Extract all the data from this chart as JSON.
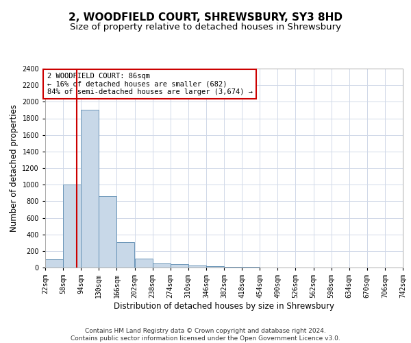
{
  "title": "2, WOODFIELD COURT, SHREWSBURY, SY3 8HD",
  "subtitle": "Size of property relative to detached houses in Shrewsbury",
  "xlabel": "Distribution of detached houses by size in Shrewsbury",
  "ylabel": "Number of detached properties",
  "footer_line1": "Contains HM Land Registry data © Crown copyright and database right 2024.",
  "footer_line2": "Contains public sector information licensed under the Open Government Licence v3.0.",
  "annotation_line1": "2 WOODFIELD COURT: 86sqm",
  "annotation_line2": "← 16% of detached houses are smaller (682)",
  "annotation_line3": "84% of semi-detached houses are larger (3,674) →",
  "bar_color": "#c8d8e8",
  "bar_edge_color": "#5a8ab0",
  "vline_color": "#cc0000",
  "vline_x": 86,
  "bin_edges": [
    22,
    58,
    94,
    130,
    166,
    202,
    238,
    274,
    310,
    346,
    382,
    418,
    454,
    490,
    526,
    562,
    598,
    634,
    670,
    706,
    742
  ],
  "bar_heights": [
    100,
    1000,
    1900,
    860,
    310,
    110,
    50,
    40,
    25,
    15,
    8,
    5,
    3,
    2,
    1,
    1,
    1,
    1,
    0,
    0
  ],
  "ylim": [
    0,
    2400
  ],
  "yticks": [
    0,
    200,
    400,
    600,
    800,
    1000,
    1200,
    1400,
    1600,
    1800,
    2000,
    2200,
    2400
  ],
  "background_color": "#ffffff",
  "grid_color": "#d0d8e8",
  "title_fontsize": 11,
  "subtitle_fontsize": 9.5,
  "axis_label_fontsize": 8.5,
  "tick_fontsize": 7,
  "annotation_fontsize": 7.5,
  "footer_fontsize": 6.5
}
